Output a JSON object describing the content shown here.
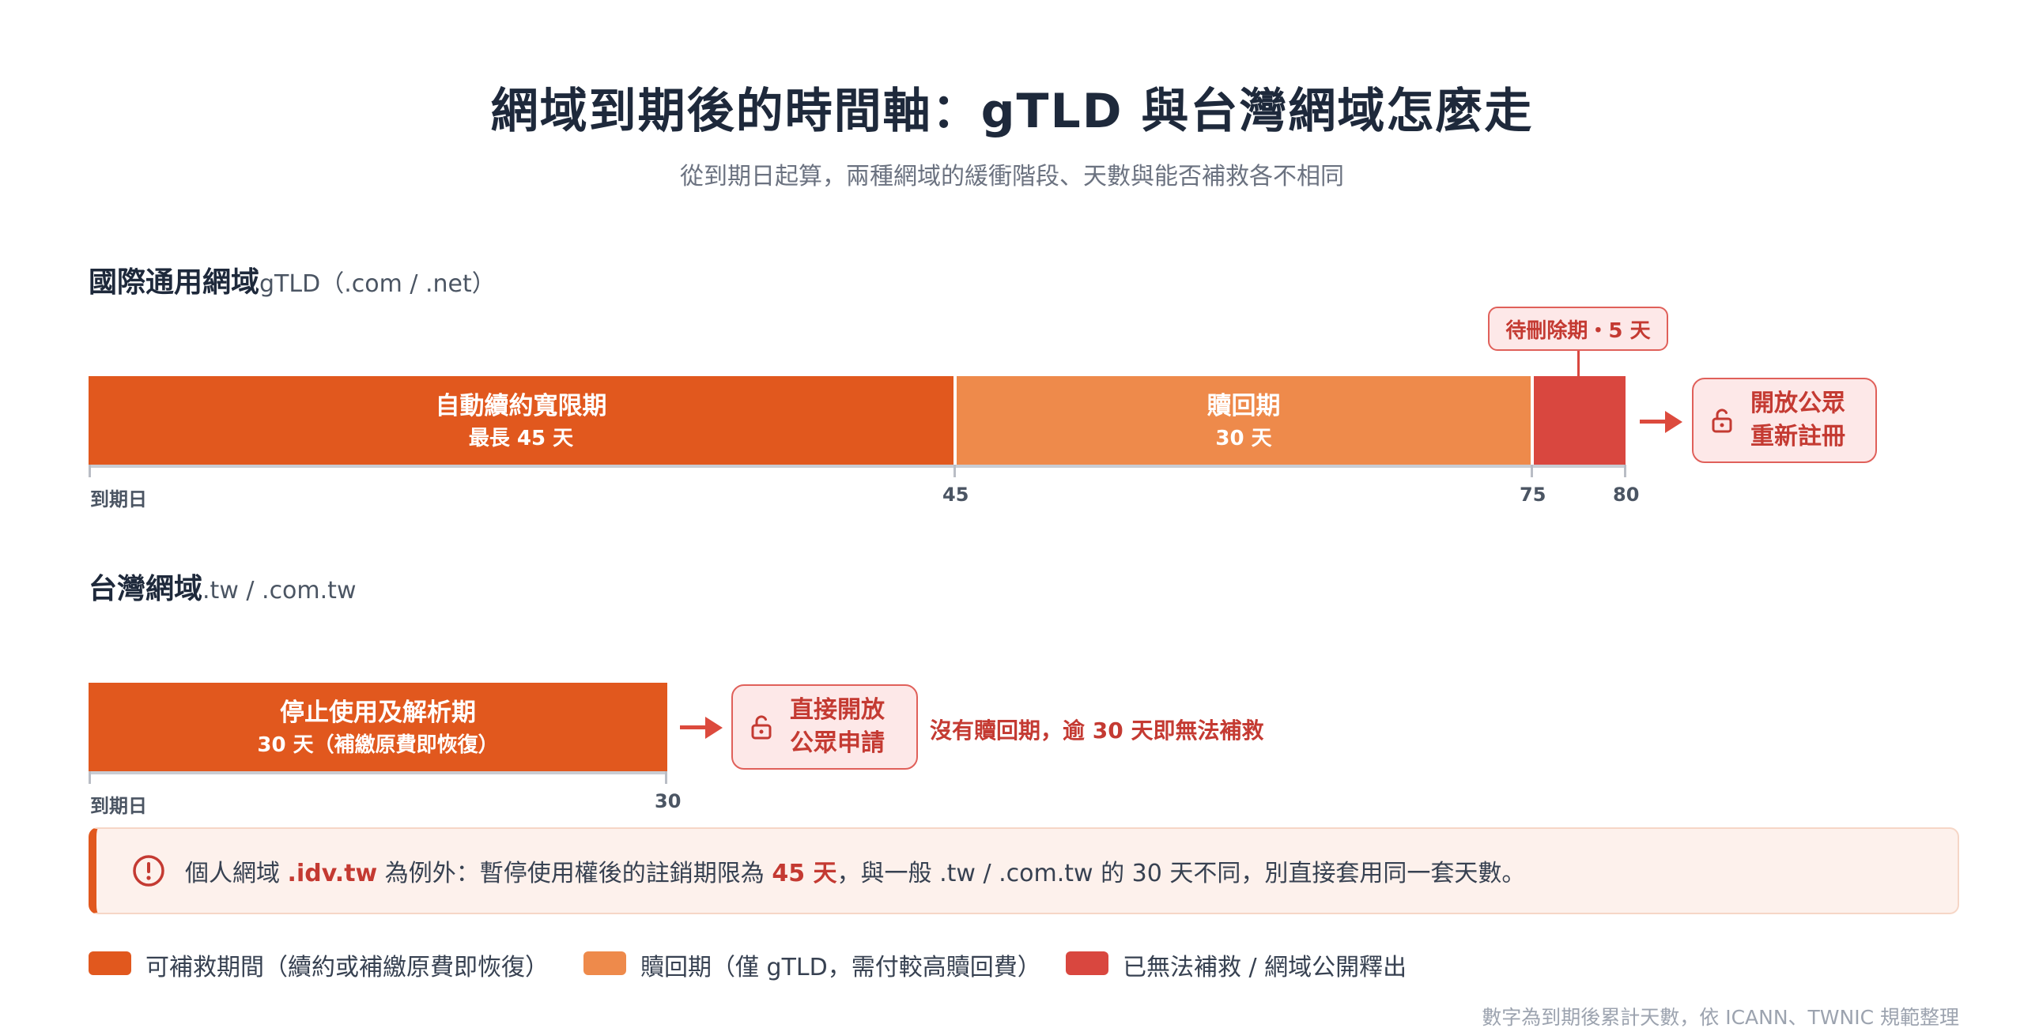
{
  "header": {
    "title": "網域到期後的時間軸：gTLD 與台灣網域怎麼走",
    "subtitle": "從到期日起算，兩種網域的緩衝階段、天數與能否補救各不相同"
  },
  "gtld": {
    "heading": "國際通用網域",
    "subheading": "gTLD（.com / .net）",
    "phases": [
      {
        "name": "自動續約寬限期",
        "detail": "最長 45 天",
        "start_day": 0,
        "end_day": 45
      },
      {
        "name": "贖回期",
        "detail": "30 天",
        "start_day": 45,
        "end_day": 75
      },
      {
        "name": "",
        "detail": "",
        "start_day": 75,
        "end_day": 80
      }
    ],
    "pending_label": "待刪除期・",
    "pending_days": "5 天",
    "ticks": [
      "到期日",
      "45",
      "75",
      "80"
    ],
    "release_label_line1": "開放公眾",
    "release_label_line2": "重新註冊"
  },
  "tw": {
    "heading": "台灣網域",
    "subheading": ".tw / .com.tw",
    "phases": [
      {
        "name": "停止使用及解析期",
        "detail": "30 天（補繳原費即恢復）",
        "start_day": 0,
        "end_day": 30
      }
    ],
    "ticks": [
      "到期日",
      "30"
    ],
    "release_label_line1": "直接開放",
    "release_label_line2": "公眾申請",
    "note_prefix": "沒有贖回期，逾 ",
    "note_days": "30 天",
    "note_suffix": "即無法補救"
  },
  "callout": {
    "text_a": "個人網域 ",
    "text_b": ".idv.tw",
    "text_c": " 為例外：暫停使用權後的註銷期限為 ",
    "text_d": "45 天",
    "text_e": "，與一般 .tw / .com.tw 的 30 天不同，別直接套用同一套天數。"
  },
  "legend": [
    {
      "label": "可補救期間（續約或補繳原費即恢復）",
      "color": "#e1581e"
    },
    {
      "label": "贖回期（僅 gTLD，需付較高贖回費）",
      "color": "#ee8a4b"
    },
    {
      "label": "已無法補救 / 網域公開釋出",
      "color": "#d9473f"
    }
  ],
  "footnote": "數字為到期後累計天數，依 ICANN、TWNIC 規範整理",
  "colors": {
    "rescue": "#e1581e",
    "redeem": "#ee8a4b",
    "release": "#d9473f"
  },
  "icons": {
    "release": "unlock-icon",
    "warning": "alert-circle-icon",
    "arrow": "arrow-right-icon"
  }
}
